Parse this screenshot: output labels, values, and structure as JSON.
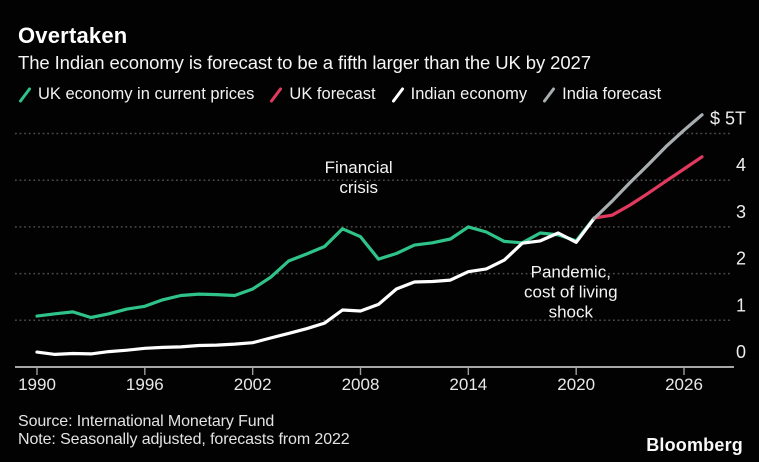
{
  "header": {
    "title": "Overtaken",
    "subtitle": "The Indian economy is forecast to be a fifth larger than the UK by 2027"
  },
  "legend": {
    "items": [
      {
        "id": "uk-economy",
        "label": "UK economy in current prices",
        "color": "#2fc38a"
      },
      {
        "id": "uk-forecast",
        "label": "UK forecast",
        "color": "#e23a5e"
      },
      {
        "id": "indian-economy",
        "label": "Indian economy",
        "color": "#ffffff"
      },
      {
        "id": "india-forecast",
        "label": "India forecast",
        "color": "#a8aeb0"
      }
    ]
  },
  "chart_data": {
    "type": "line",
    "title": "Overtaken",
    "subtitle": "The Indian economy is forecast to be a fifth larger than the UK by 2027",
    "unit": "trillions of US dollars",
    "grid": "horizontal-dotted",
    "legend_position": "top",
    "x_range": [
      1990,
      2027
    ],
    "ylim": [
      0,
      5.5
    ],
    "x_ticks": {
      "values": [
        1990,
        1996,
        2002,
        2008,
        2014,
        2020,
        2026
      ],
      "labels": [
        "1990",
        "1996",
        "2002",
        "2008",
        "2014",
        "2020",
        "2026"
      ]
    },
    "y_ticks": {
      "values": [
        5,
        4,
        3,
        2,
        1,
        0
      ],
      "labels": [
        "$ 5T",
        "4",
        "3",
        "2",
        "1",
        "0"
      ]
    },
    "series": [
      {
        "name": "UK economy in current prices",
        "color": "#2fc38a",
        "x_start": 1990,
        "values": [
          1.09,
          1.14,
          1.18,
          1.06,
          1.14,
          1.24,
          1.3,
          1.44,
          1.53,
          1.56,
          1.55,
          1.53,
          1.67,
          1.92,
          2.27,
          2.42,
          2.58,
          2.96,
          2.79,
          2.31,
          2.43,
          2.61,
          2.66,
          2.74,
          3.0,
          2.89,
          2.69,
          2.66,
          2.87,
          2.83,
          2.7,
          3.19
        ]
      },
      {
        "name": "UK forecast",
        "color": "#e23a5e",
        "x_start": 2021,
        "values": [
          3.19,
          3.25,
          3.47,
          3.72,
          3.98,
          4.24,
          4.5
        ]
      },
      {
        "name": "Indian economy",
        "color": "#ffffff",
        "x_start": 1990,
        "values": [
          0.32,
          0.27,
          0.29,
          0.28,
          0.33,
          0.36,
          0.4,
          0.42,
          0.43,
          0.46,
          0.47,
          0.49,
          0.52,
          0.62,
          0.72,
          0.82,
          0.94,
          1.22,
          1.2,
          1.34,
          1.67,
          1.82,
          1.83,
          1.86,
          2.04,
          2.1,
          2.29,
          2.65,
          2.7,
          2.87,
          2.67,
          3.18
        ]
      },
      {
        "name": "India forecast",
        "color": "#a8aeb0",
        "x_start": 2021,
        "values": [
          3.18,
          3.55,
          3.95,
          4.33,
          4.72,
          5.07,
          5.4
        ]
      }
    ],
    "annotations": [
      {
        "lines": [
          "Financial",
          "crisis"
        ],
        "x": 2007.9,
        "y": 4.15
      },
      {
        "lines": [
          "Pandemic,",
          "cost of living",
          "shock"
        ],
        "x": 2019.7,
        "y": 1.92
      }
    ]
  },
  "footer": {
    "source": "Source: International Monetary Fund",
    "note": "Note: Seasonally adjusted, forecasts from 2022",
    "brand": "Bloomberg"
  }
}
